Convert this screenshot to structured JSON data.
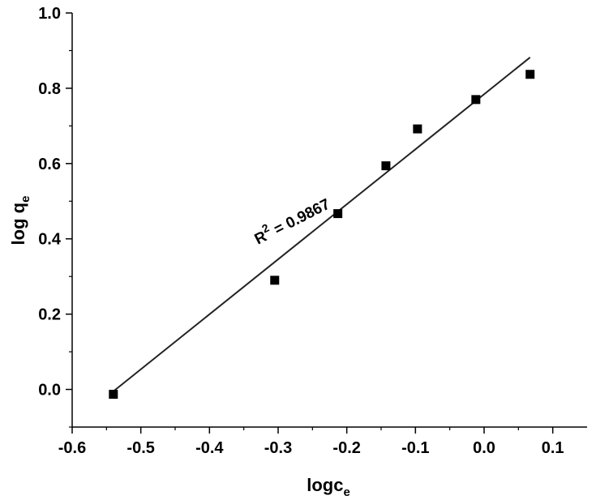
{
  "chart_data": {
    "type": "scatter",
    "xlabel": {
      "main": "logc",
      "sub": "e"
    },
    "ylabel": {
      "main": "log q",
      "sub": "e"
    },
    "xlim": [
      -0.6,
      0.15
    ],
    "ylim": [
      -0.1,
      1.0
    ],
    "x_ticks": [
      "-0.6",
      "-0.5",
      "-0.4",
      "-0.3",
      "-0.2",
      "-0.1",
      "0.0",
      "0.1"
    ],
    "y_ticks": [
      "0.0",
      "0.2",
      "0.4",
      "0.6",
      "0.8",
      "1.0"
    ],
    "grid": false,
    "legend": "none",
    "points": [
      {
        "x": -0.54,
        "y": -0.013
      },
      {
        "x": -0.305,
        "y": 0.29
      },
      {
        "x": -0.213,
        "y": 0.467
      },
      {
        "x": -0.143,
        "y": 0.594
      },
      {
        "x": -0.097,
        "y": 0.692
      },
      {
        "x": -0.012,
        "y": 0.77
      },
      {
        "x": 0.067,
        "y": 0.837
      }
    ],
    "fit_line": {
      "x": [
        -0.54,
        0.067
      ],
      "y": [
        -0.005,
        0.882
      ]
    },
    "annotation": {
      "text": "R",
      "sup": "2",
      "rest": " = 0.9867"
    },
    "marker_color": "#000000",
    "line_color": "#222222"
  }
}
